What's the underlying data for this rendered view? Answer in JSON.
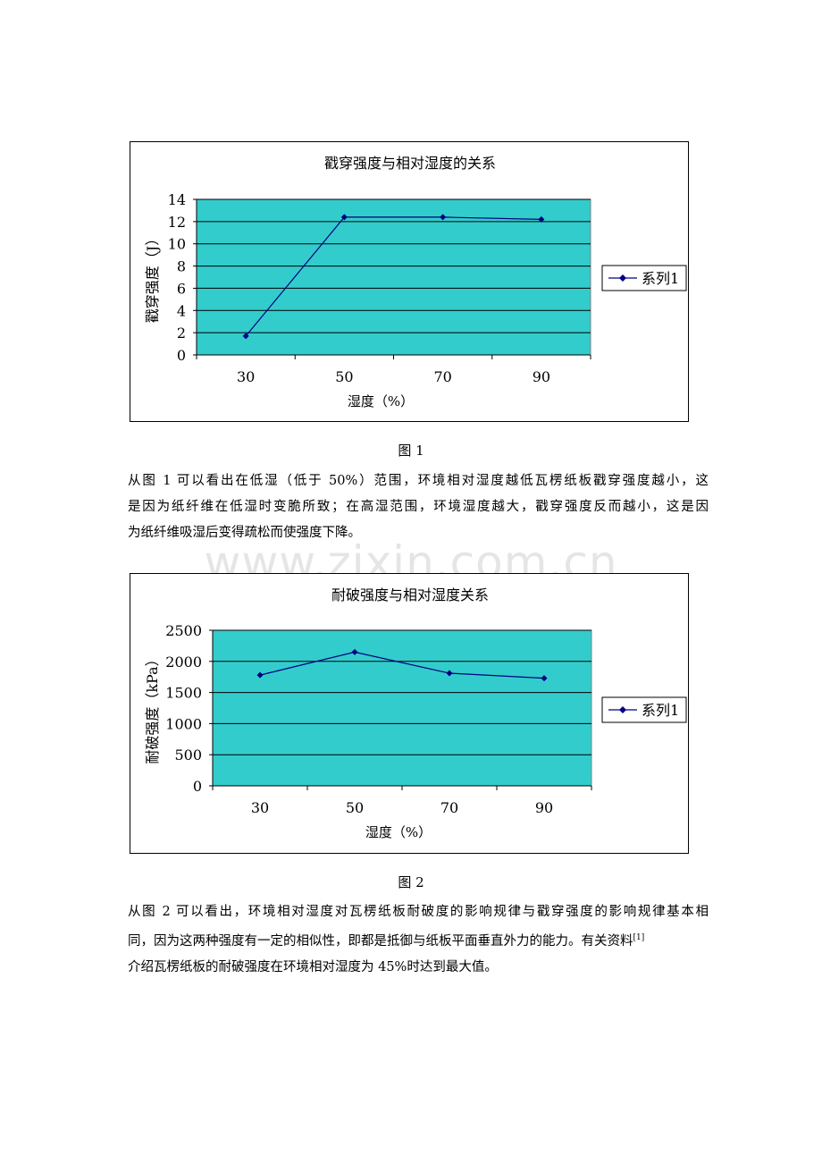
{
  "chart_data": [
    {
      "type": "line",
      "title": "戳穿强度与相对湿度的关系",
      "xlabel": "湿度（%）",
      "ylabel": "戳穿强度（J）",
      "categories": [
        "30",
        "50",
        "70",
        "90"
      ],
      "series": [
        {
          "name": "系列1",
          "values": [
            1.7,
            12.4,
            12.4,
            12.2
          ]
        }
      ],
      "ylim": [
        0,
        14
      ],
      "yticks": [
        "0",
        "2",
        "4",
        "6",
        "8",
        "10",
        "12",
        "14"
      ],
      "grid": true,
      "legend": "right",
      "colors": {
        "plot_bg": "#33CCCC",
        "line": "#000080"
      }
    },
    {
      "type": "line",
      "title": "耐破强度与相对湿度关系",
      "xlabel": "湿度（%）",
      "ylabel": "耐破强度（kPa）",
      "categories": [
        "30",
        "50",
        "70",
        "90"
      ],
      "series": [
        {
          "name": "系列1",
          "values": [
            1780,
            2150,
            1810,
            1730
          ]
        }
      ],
      "ylim": [
        0,
        2500
      ],
      "yticks": [
        "0",
        "500",
        "1000",
        "1500",
        "2000",
        "2500"
      ],
      "grid": true,
      "legend": "right",
      "colors": {
        "plot_bg": "#33CCCC",
        "line": "#000080"
      }
    }
  ],
  "captions": {
    "fig1": "图 1",
    "fig2": "图 2"
  },
  "paragraph1": [
    "从图 1 可以看出在低湿（低于 50%）范围，环境相对湿度越低瓦楞纸板戳穿强度越小，这",
    "是因为纸纤维在低湿时变脆所致；在高湿范围，环境湿度越大，戳穿强度反而越小，这是因",
    "为纸纤维吸湿后变得疏松而使强度下降。"
  ],
  "paragraph2": {
    "line1": "从图 2 可以看出，环境相对湿度对瓦楞纸板耐破度的影响规律与戳穿强度的影响规律基本相",
    "line2": "同，因为这两种强度有一定的相似性，即都是抵御与纸板平面垂直外力的能力。有关资料",
    "line2_sup": "[1]",
    "line3": "介绍瓦楞纸板的耐破强度在环境相对湿度为 45%时达到最大值。"
  },
  "watermark": "www.zixin.com.cn"
}
